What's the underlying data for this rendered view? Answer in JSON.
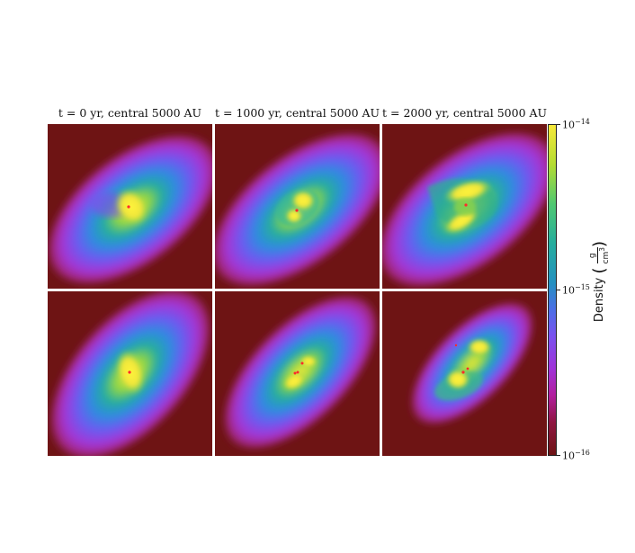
{
  "panel_titles": [
    "t = 0 yr, central 5000 AU",
    "t = 1000 yr, central 5000 AU",
    "t = 2000 yr, central 5000 AU"
  ],
  "colorbar": {
    "label": "Density",
    "unit_numerator": "g",
    "unit_denominator": "cm",
    "unit_denominator_exponent": "3",
    "ticks": [
      {
        "base": "10",
        "exp": "−14"
      },
      {
        "base": "10",
        "exp": "−15"
      },
      {
        "base": "10",
        "exp": "−16"
      }
    ],
    "colormap": "plasma-like (dark red → purple → blue → teal → green → yellow)",
    "scale": "log"
  },
  "colors": {
    "background_low": "#6e1414",
    "high_density": "#f7e93a"
  },
  "panels": [
    {
      "row": "top",
      "column": 1,
      "description_icon": "density-slice"
    },
    {
      "row": "top",
      "column": 2,
      "description_icon": "density-slice"
    },
    {
      "row": "top",
      "column": 3,
      "description_icon": "density-slice"
    },
    {
      "row": "bottom",
      "column": 1,
      "description_icon": "density-slice"
    },
    {
      "row": "bottom",
      "column": 2,
      "description_icon": "density-slice"
    },
    {
      "row": "bottom",
      "column": 3,
      "description_icon": "density-slice"
    }
  ]
}
